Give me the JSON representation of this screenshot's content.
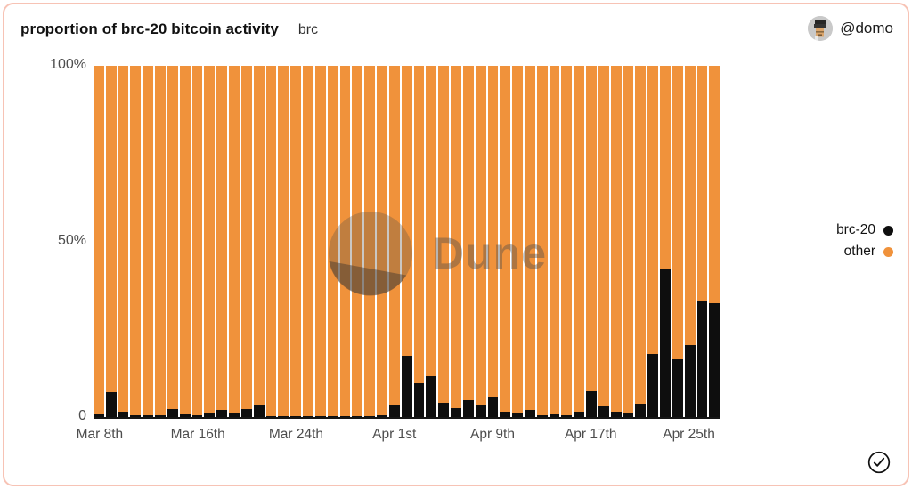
{
  "header": {
    "title": "proportion of brc-20 bitcoin activity",
    "subtitle": "brc",
    "user_handle": "@domo",
    "avatar": "pixel-face-avatar"
  },
  "colors": {
    "brc20": "#0e0e0e",
    "other": "#f0923b",
    "card_border": "#f7c3b5",
    "axis_text": "#4d4d4d"
  },
  "legend": {
    "position": "right",
    "items": [
      {
        "label": "brc-20",
        "color": "#0e0e0e"
      },
      {
        "label": "other",
        "color": "#f0923b"
      }
    ]
  },
  "y_axis": {
    "ticks": [
      {
        "label": "100%",
        "value": 100
      },
      {
        "label": "50%",
        "value": 50
      },
      {
        "label": "0",
        "value": 0
      }
    ]
  },
  "x_axis": {
    "ticks": [
      {
        "index": 0,
        "label": "Mar 8th"
      },
      {
        "index": 8,
        "label": "Mar 16th"
      },
      {
        "index": 16,
        "label": "Mar 24th"
      },
      {
        "index": 24,
        "label": "Apr 1st"
      },
      {
        "index": 32,
        "label": "Apr 9th"
      },
      {
        "index": 40,
        "label": "Apr 17th"
      },
      {
        "index": 48,
        "label": "Apr 25th"
      }
    ]
  },
  "watermark": {
    "text": "Dune",
    "logo": "dune-logo"
  },
  "footer": {
    "icon": "check-circle-icon"
  },
  "chart_data": {
    "type": "bar",
    "stacked": true,
    "stack_total": 100,
    "unit": "%",
    "title": "proportion of brc-20 bitcoin activity",
    "xlabel": "",
    "ylabel": "",
    "ylim": [
      0,
      100
    ],
    "grid": false,
    "legend_position": "right",
    "x": [
      "Mar 8",
      "Mar 9",
      "Mar 10",
      "Mar 11",
      "Mar 12",
      "Mar 13",
      "Mar 14",
      "Mar 15",
      "Mar 16",
      "Mar 17",
      "Mar 18",
      "Mar 19",
      "Mar 20",
      "Mar 21",
      "Mar 22",
      "Mar 23",
      "Mar 24",
      "Mar 25",
      "Mar 26",
      "Mar 27",
      "Mar 28",
      "Mar 29",
      "Mar 30",
      "Mar 31",
      "Apr 1",
      "Apr 2",
      "Apr 3",
      "Apr 4",
      "Apr 5",
      "Apr 6",
      "Apr 7",
      "Apr 8",
      "Apr 9",
      "Apr 10",
      "Apr 11",
      "Apr 12",
      "Apr 13",
      "Apr 14",
      "Apr 15",
      "Apr 16",
      "Apr 17",
      "Apr 18",
      "Apr 19",
      "Apr 20",
      "Apr 21",
      "Apr 22",
      "Apr 23",
      "Apr 24",
      "Apr 25",
      "Apr 26",
      "Apr 27"
    ],
    "series": [
      {
        "name": "brc-20",
        "color": "#0e0e0e",
        "values": [
          0.7,
          7,
          1.6,
          0.5,
          0.6,
          0.6,
          2.2,
          0.8,
          0.6,
          1.2,
          2.1,
          0.9,
          2.4,
          3.5,
          0.3,
          0.2,
          0.2,
          0.2,
          0.2,
          0.2,
          0.2,
          0.3,
          0.3,
          0.5,
          3.3,
          17.5,
          9.5,
          11.7,
          4.1,
          2.5,
          4.8,
          3.5,
          5.9,
          1.4,
          1.0,
          2.0,
          0.5,
          0.8,
          0.6,
          1.5,
          7.3,
          3.1,
          1.4,
          1.3,
          3.9,
          18,
          42,
          16.5,
          20.5,
          33,
          32.5
        ]
      },
      {
        "name": "other",
        "color": "#f0923b",
        "values": [
          99.3,
          93,
          98.4,
          99.5,
          99.4,
          99.4,
          97.8,
          99.2,
          99.4,
          98.8,
          97.9,
          99.1,
          97.6,
          96.5,
          99.7,
          99.8,
          99.8,
          99.8,
          99.8,
          99.8,
          99.8,
          99.7,
          99.7,
          99.5,
          96.7,
          82.5,
          90.5,
          88.3,
          95.9,
          97.5,
          95.2,
          96.5,
          94.1,
          98.6,
          99,
          98,
          99.5,
          99.2,
          99.4,
          98.5,
          92.7,
          96.9,
          98.6,
          98.7,
          96.1,
          82,
          58,
          83.5,
          79.5,
          67,
          67.5
        ]
      }
    ]
  }
}
